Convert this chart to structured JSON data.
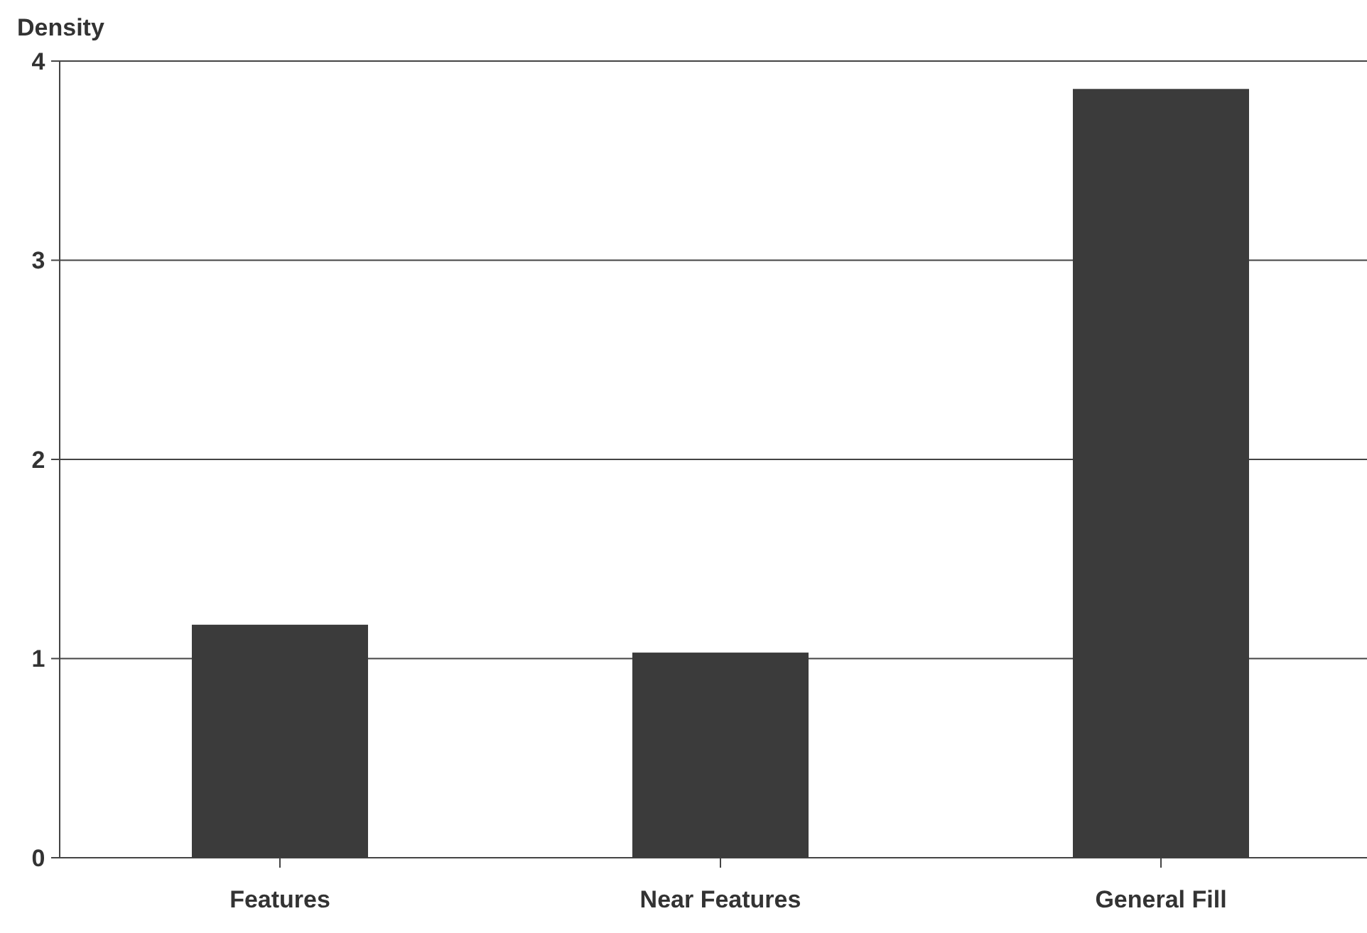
{
  "chart_data": {
    "type": "bar",
    "ylabel": "Density",
    "categories": [
      "Features",
      "Near Features",
      "General Fill"
    ],
    "values": [
      1.17,
      1.03,
      3.86
    ],
    "color": "#3b3b3b",
    "ylim": [
      0,
      4
    ],
    "yticks": [
      0,
      1,
      2,
      3,
      4
    ],
    "grid": "y"
  }
}
